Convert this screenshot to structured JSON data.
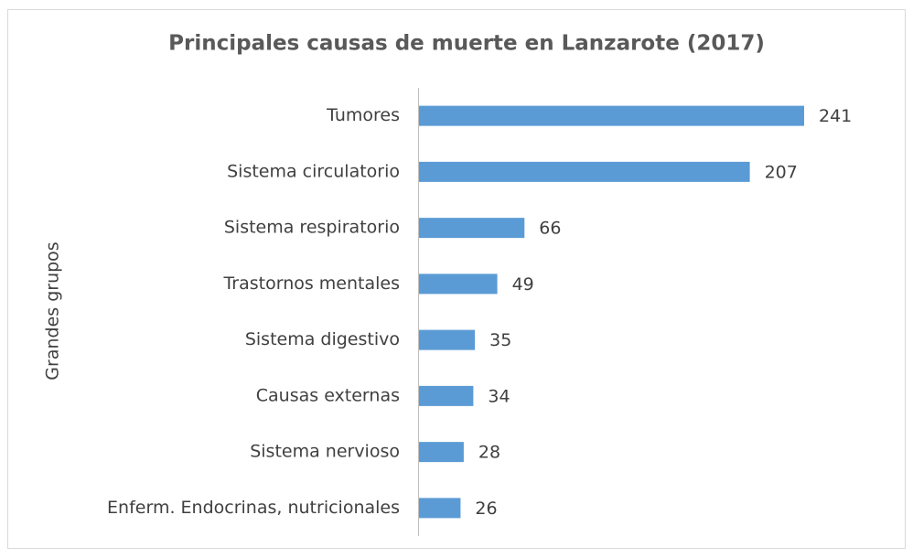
{
  "chart_data": {
    "type": "bar",
    "orientation": "horizontal",
    "title": "Principales causas de muerte en Lanzarote (2017)",
    "y_label": "Grandes grupos",
    "categories": [
      "Tumores",
      "Sistema circulatorio",
      "Sistema respiratorio",
      "Trastornos mentales",
      "Sistema digestivo",
      "Causas externas",
      "Sistema nervioso",
      "Enferm. Endocrinas, nutricionales"
    ],
    "values": [
      241,
      207,
      66,
      49,
      35,
      34,
      28,
      26
    ],
    "color": "#5b9bd5"
  }
}
